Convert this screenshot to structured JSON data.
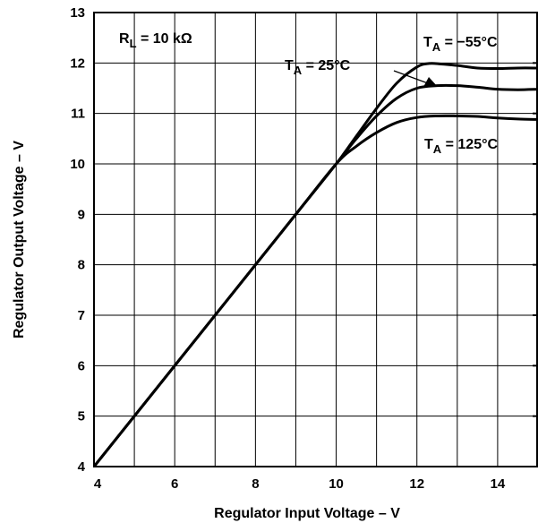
{
  "chart_data": {
    "type": "line",
    "xlabel": "Regulator Input Voltage – V",
    "ylabel": "Regulator Output Voltage – V",
    "xlim": [
      4,
      15
    ],
    "ylim": [
      4,
      13
    ],
    "xticks": [
      4,
      6,
      8,
      10,
      12,
      14
    ],
    "yticks": [
      4,
      5,
      6,
      7,
      8,
      9,
      10,
      11,
      12,
      13
    ],
    "grid": true,
    "line_color": "#000000",
    "annotations": {
      "rl": {
        "main": "R",
        "sub": "L",
        "rest": " = 10 kΩ"
      },
      "t25": {
        "main": "T",
        "sub": "A",
        "rest": " = 25°C"
      },
      "tm55": {
        "main": "T",
        "sub": "A",
        "rest": " = −55°C"
      },
      "t125": {
        "main": "T",
        "sub": "A",
        "rest": " = 125°C"
      }
    },
    "series": [
      {
        "name": "T_A = −55°C",
        "x": [
          4,
          6,
          8,
          9,
          10,
          10.5,
          11,
          11.5,
          12,
          12.3,
          12.6,
          13,
          13.5,
          14,
          14.5,
          15
        ],
        "y": [
          4,
          6,
          8,
          9,
          10,
          10.55,
          11.1,
          11.6,
          11.92,
          11.99,
          11.98,
          11.95,
          11.9,
          11.89,
          11.9,
          11.9
        ]
      },
      {
        "name": "T_A = 25°C",
        "x": [
          4,
          6,
          8,
          9,
          10,
          10.5,
          11,
          11.5,
          12,
          12.5,
          13,
          13.5,
          14,
          14.5,
          15
        ],
        "y": [
          4,
          6,
          8,
          9,
          10,
          10.5,
          10.95,
          11.3,
          11.5,
          11.55,
          11.55,
          11.52,
          11.48,
          11.47,
          11.48
        ]
      },
      {
        "name": "T_A = 125°C",
        "x": [
          4,
          6,
          8,
          9,
          10,
          10.5,
          11,
          11.5,
          12,
          12.5,
          13,
          13.5,
          14,
          14.5,
          15
        ],
        "y": [
          4,
          6,
          8,
          9,
          10,
          10.35,
          10.62,
          10.82,
          10.92,
          10.95,
          10.95,
          10.94,
          10.91,
          10.89,
          10.88
        ]
      }
    ]
  }
}
